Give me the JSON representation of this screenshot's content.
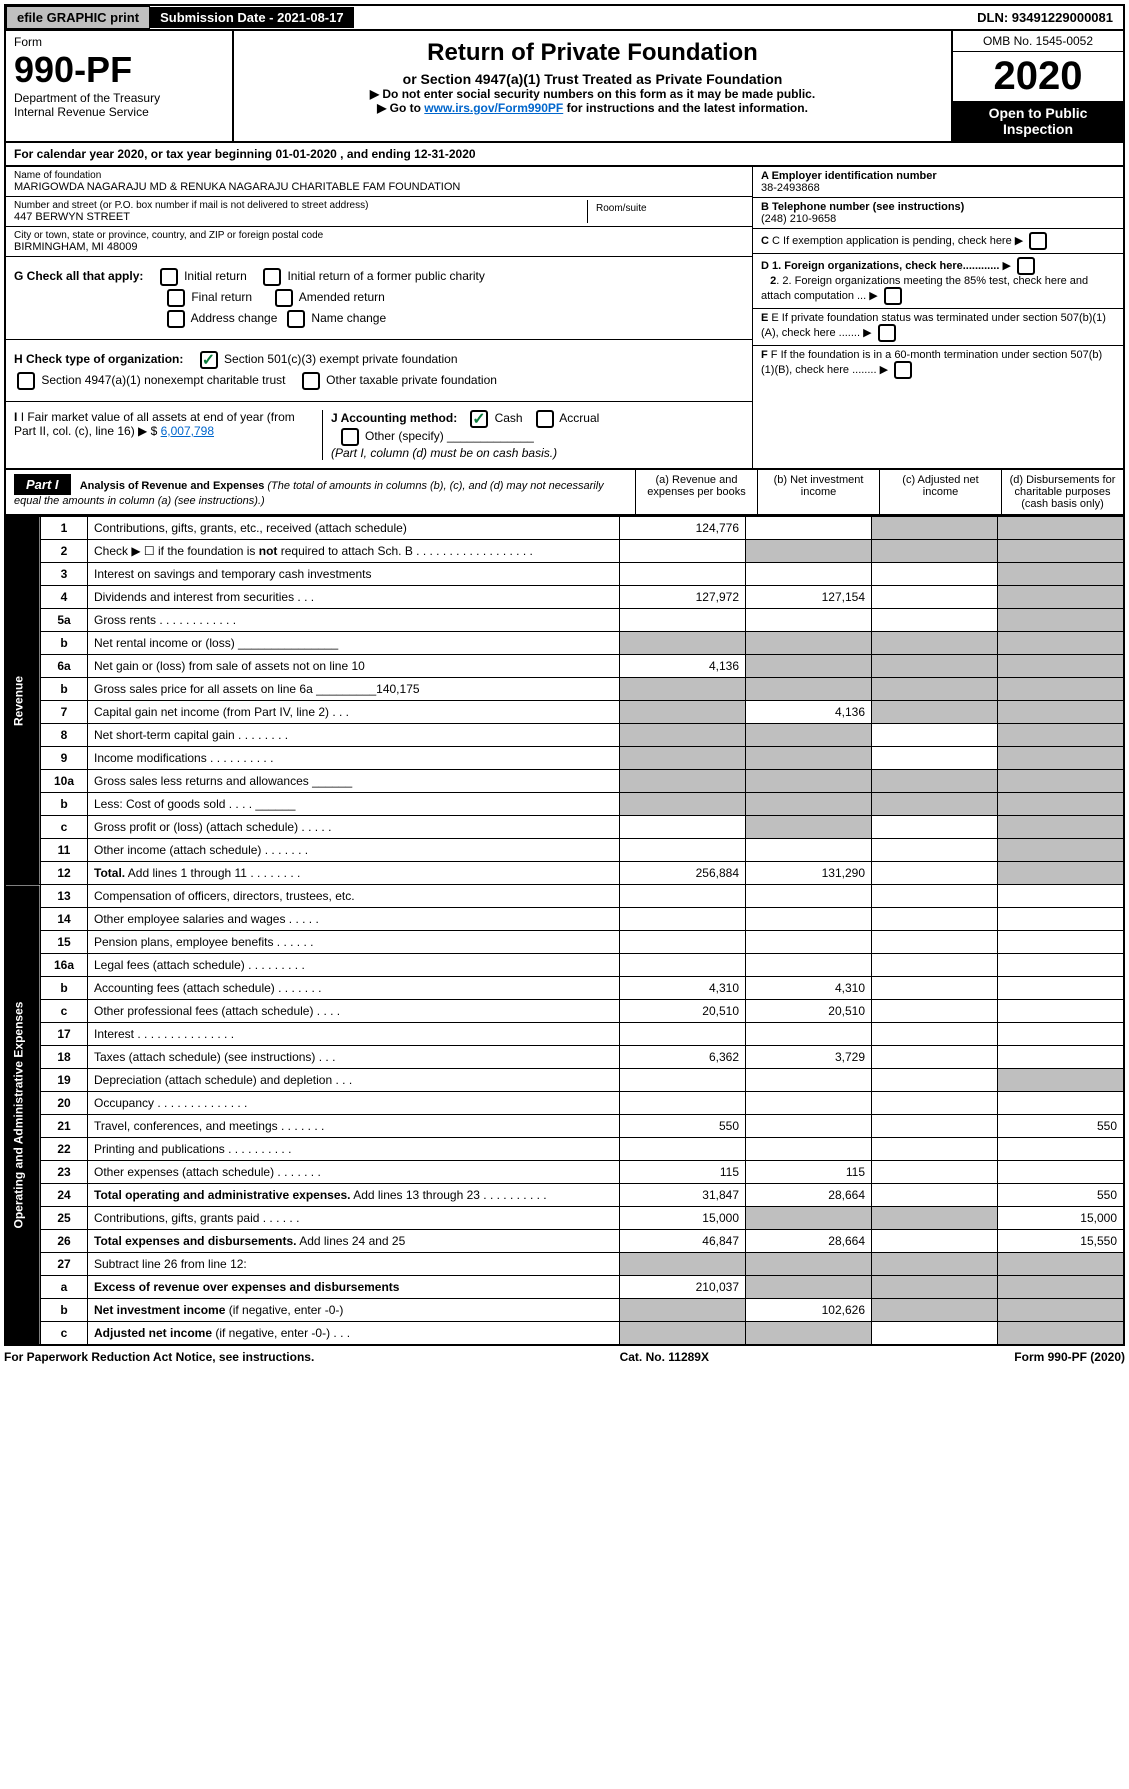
{
  "topbar": {
    "efile": "efile GRAPHIC print",
    "submission": "Submission Date - 2021-08-17",
    "dln": "DLN: 93491229000081"
  },
  "header": {
    "form_word": "Form",
    "form_number": "990-PF",
    "dept": "Department of the Treasury",
    "irs": "Internal Revenue Service",
    "title": "Return of Private Foundation",
    "subtitle": "or Section 4947(a)(1) Trust Treated as Private Foundation",
    "note1": "▶ Do not enter social security numbers on this form as it may be made public.",
    "note2_pre": "▶ Go to ",
    "note2_link": "www.irs.gov/Form990PF",
    "note2_post": " for instructions and the latest information.",
    "omb": "OMB No. 1545-0052",
    "year": "2020",
    "open": "Open to Public Inspection"
  },
  "cal_year": "For calendar year 2020, or tax year beginning 01-01-2020                          , and ending 12-31-2020",
  "info": {
    "name_label": "Name of foundation",
    "name": "MARIGOWDA NAGARAJU MD & RENUKA NAGARAJU CHARITABLE FAM FOUNDATION",
    "ein_label": "A Employer identification number",
    "ein": "38-2493868",
    "addr_label": "Number and street (or P.O. box number if mail is not delivered to street address)",
    "addr": "447 BERWYN STREET",
    "room_label": "Room/suite",
    "phone_label": "B Telephone number (see instructions)",
    "phone": "(248) 210-9658",
    "city_label": "City or town, state or province, country, and ZIP or foreign postal code",
    "city": "BIRMINGHAM, MI  48009",
    "c_text": "C If exemption application is pending, check here",
    "g_label": "G Check all that apply:",
    "g1": "Initial return",
    "g2": "Initial return of a former public charity",
    "g3": "Final return",
    "g4": "Amended return",
    "g5": "Address change",
    "g6": "Name change",
    "d1": "D 1. Foreign organizations, check here............",
    "d2": "2. Foreign organizations meeting the 85% test, check here and attach computation ...",
    "h_label": "H Check type of organization:",
    "h1": "Section 501(c)(3) exempt private foundation",
    "h2": "Section 4947(a)(1) nonexempt charitable trust",
    "h3": "Other taxable private foundation",
    "e_text": "E  If private foundation status was terminated under section 507(b)(1)(A), check here .......",
    "i_label": "I Fair market value of all assets at end of year (from Part II, col. (c), line 16) ▶ $",
    "i_val": "6,007,798",
    "j_label": "J Accounting method:",
    "j1": "Cash",
    "j2": "Accrual",
    "j3": "Other (specify)",
    "j_note": "(Part I, column (d) must be on cash basis.)",
    "f_text": "F  If the foundation is in a 60-month termination under section 507(b)(1)(B), check here ........"
  },
  "part1": {
    "label": "Part I",
    "title": "Analysis of Revenue and Expenses",
    "title_note": "(The total of amounts in columns (b), (c), and (d) may not necessarily equal the amounts in column (a) (see instructions).)",
    "col_a": "(a)    Revenue and expenses per books",
    "col_b": "(b)   Net investment income",
    "col_c": "(c)   Adjusted net income",
    "col_d": "(d)   Disbursements for charitable purposes (cash basis only)"
  },
  "side": {
    "revenue": "Revenue",
    "expenses": "Operating and Administrative Expenses"
  },
  "rows": [
    {
      "n": "1",
      "t": "Contributions, gifts, grants, etc., received (attach schedule)",
      "a": "124,776",
      "b": "",
      "c": "g",
      "d": "g"
    },
    {
      "n": "2",
      "t": "Check ▶ ☐ if the foundation is <b>not</b> required to attach Sch. B  .  .  .  .  .  .  .  .  .  .  .  .  .  .  .  .  .  .",
      "a": "",
      "b": "g",
      "c": "g",
      "d": "g"
    },
    {
      "n": "3",
      "t": "Interest on savings and temporary cash investments",
      "a": "",
      "b": "",
      "c": "",
      "d": "g"
    },
    {
      "n": "4",
      "t": "Dividends and interest from securities    .    .    .",
      "a": "127,972",
      "b": "127,154",
      "c": "",
      "d": "g"
    },
    {
      "n": "5a",
      "t": "Gross rents     .   .   .   .   .   .   .   .   .   .   .   .",
      "a": "",
      "b": "",
      "c": "",
      "d": "g"
    },
    {
      "n": "b",
      "t": "Net rental income or (loss)       _______________",
      "a": "g",
      "b": "g",
      "c": "g",
      "d": "g"
    },
    {
      "n": "6a",
      "t": "Net gain or (loss) from sale of assets not on line 10",
      "a": "4,136",
      "b": "g",
      "c": "g",
      "d": "g"
    },
    {
      "n": "b",
      "t": "Gross sales price for all assets on line 6a _________140,175",
      "a": "g",
      "b": "g",
      "c": "g",
      "d": "g"
    },
    {
      "n": "7",
      "t": "Capital gain net income (from Part IV, line 2)    .    .    .",
      "a": "g",
      "b": "4,136",
      "c": "g",
      "d": "g"
    },
    {
      "n": "8",
      "t": "Net short-term capital gain    .   .   .   .   .   .   .   .",
      "a": "g",
      "b": "g",
      "c": "",
      "d": "g"
    },
    {
      "n": "9",
      "t": "Income modifications   .   .   .   .   .   .   .   .   .   .",
      "a": "g",
      "b": "g",
      "c": "",
      "d": "g"
    },
    {
      "n": "10a",
      "t": "Gross sales less returns and allowances   ______",
      "a": "g",
      "b": "g",
      "c": "g",
      "d": "g"
    },
    {
      "n": "b",
      "t": "Less: Cost of goods sold      .   .   .   .   ______",
      "a": "g",
      "b": "g",
      "c": "g",
      "d": "g"
    },
    {
      "n": "c",
      "t": "Gross profit or (loss) (attach schedule)    .   .   .   .   .",
      "a": "",
      "b": "g",
      "c": "",
      "d": "g"
    },
    {
      "n": "11",
      "t": "Other income (attach schedule)    .   .   .   .   .   .   .",
      "a": "",
      "b": "",
      "c": "",
      "d": "g"
    },
    {
      "n": "12",
      "t": "<b>Total.</b> Add lines 1 through 11    .   .   .   .   .   .   .   .",
      "a": "256,884",
      "b": "131,290",
      "c": "",
      "d": "g"
    },
    {
      "n": "13",
      "t": "Compensation of officers, directors, trustees, etc.",
      "a": "",
      "b": "",
      "c": "",
      "d": ""
    },
    {
      "n": "14",
      "t": "Other employee salaries and wages    .   .   .   .   .",
      "a": "",
      "b": "",
      "c": "",
      "d": ""
    },
    {
      "n": "15",
      "t": "Pension plans, employee benefits    .   .   .   .   .   .",
      "a": "",
      "b": "",
      "c": "",
      "d": ""
    },
    {
      "n": "16a",
      "t": "Legal fees (attach schedule)   .   .   .   .   .   .   .   .   .",
      "a": "",
      "b": "",
      "c": "",
      "d": ""
    },
    {
      "n": "b",
      "t": "Accounting fees (attach schedule)   .   .   .   .   .   .   .",
      "a": "4,310",
      "b": "4,310",
      "c": "",
      "d": ""
    },
    {
      "n": "c",
      "t": "Other professional fees (attach schedule)    .   .   .   .",
      "a": "20,510",
      "b": "20,510",
      "c": "",
      "d": ""
    },
    {
      "n": "17",
      "t": "Interest    .   .   .   .   .   .   .   .   .   .   .   .   .   .   .",
      "a": "",
      "b": "",
      "c": "",
      "d": ""
    },
    {
      "n": "18",
      "t": "Taxes (attach schedule) (see instructions)     .   .   .",
      "a": "6,362",
      "b": "3,729",
      "c": "",
      "d": ""
    },
    {
      "n": "19",
      "t": "Depreciation (attach schedule) and depletion    .   .   .",
      "a": "",
      "b": "",
      "c": "",
      "d": "g"
    },
    {
      "n": "20",
      "t": "Occupancy   .   .   .   .   .   .   .   .   .   .   .   .   .   .",
      "a": "",
      "b": "",
      "c": "",
      "d": ""
    },
    {
      "n": "21",
      "t": "Travel, conferences, and meetings   .   .   .   .   .   .   .",
      "a": "550",
      "b": "",
      "c": "",
      "d": "550"
    },
    {
      "n": "22",
      "t": "Printing and publications   .   .   .   .   .   .   .   .   .   .",
      "a": "",
      "b": "",
      "c": "",
      "d": ""
    },
    {
      "n": "23",
      "t": "Other expenses (attach schedule)   .   .   .   .   .   .   .",
      "a": "115",
      "b": "115",
      "c": "",
      "d": ""
    },
    {
      "n": "24",
      "t": "<b>Total operating and administrative expenses.</b> Add lines 13 through 23   .   .   .   .   .   .   .   .   .   .",
      "a": "31,847",
      "b": "28,664",
      "c": "",
      "d": "550"
    },
    {
      "n": "25",
      "t": "Contributions, gifts, grants paid     .   .   .   .   .   .",
      "a": "15,000",
      "b": "g",
      "c": "g",
      "d": "15,000"
    },
    {
      "n": "26",
      "t": "<b>Total expenses and disbursements.</b> Add lines 24 and 25",
      "a": "46,847",
      "b": "28,664",
      "c": "",
      "d": "15,550"
    },
    {
      "n": "27",
      "t": "Subtract line 26 from line 12:",
      "a": "g",
      "b": "g",
      "c": "g",
      "d": "g"
    },
    {
      "n": "a",
      "t": "<b>Excess of revenue over expenses and disbursements</b>",
      "a": "210,037",
      "b": "g",
      "c": "g",
      "d": "g"
    },
    {
      "n": "b",
      "t": "<b>Net investment income</b> (if negative, enter -0-)",
      "a": "g",
      "b": "102,626",
      "c": "g",
      "d": "g"
    },
    {
      "n": "c",
      "t": "<b>Adjusted net income</b> (if negative, enter -0-)   .   .   .",
      "a": "g",
      "b": "g",
      "c": "",
      "d": "g"
    }
  ],
  "footer": {
    "left": "For Paperwork Reduction Act Notice, see instructions.",
    "mid": "Cat. No. 11289X",
    "right": "Form 990-PF (2020)"
  }
}
